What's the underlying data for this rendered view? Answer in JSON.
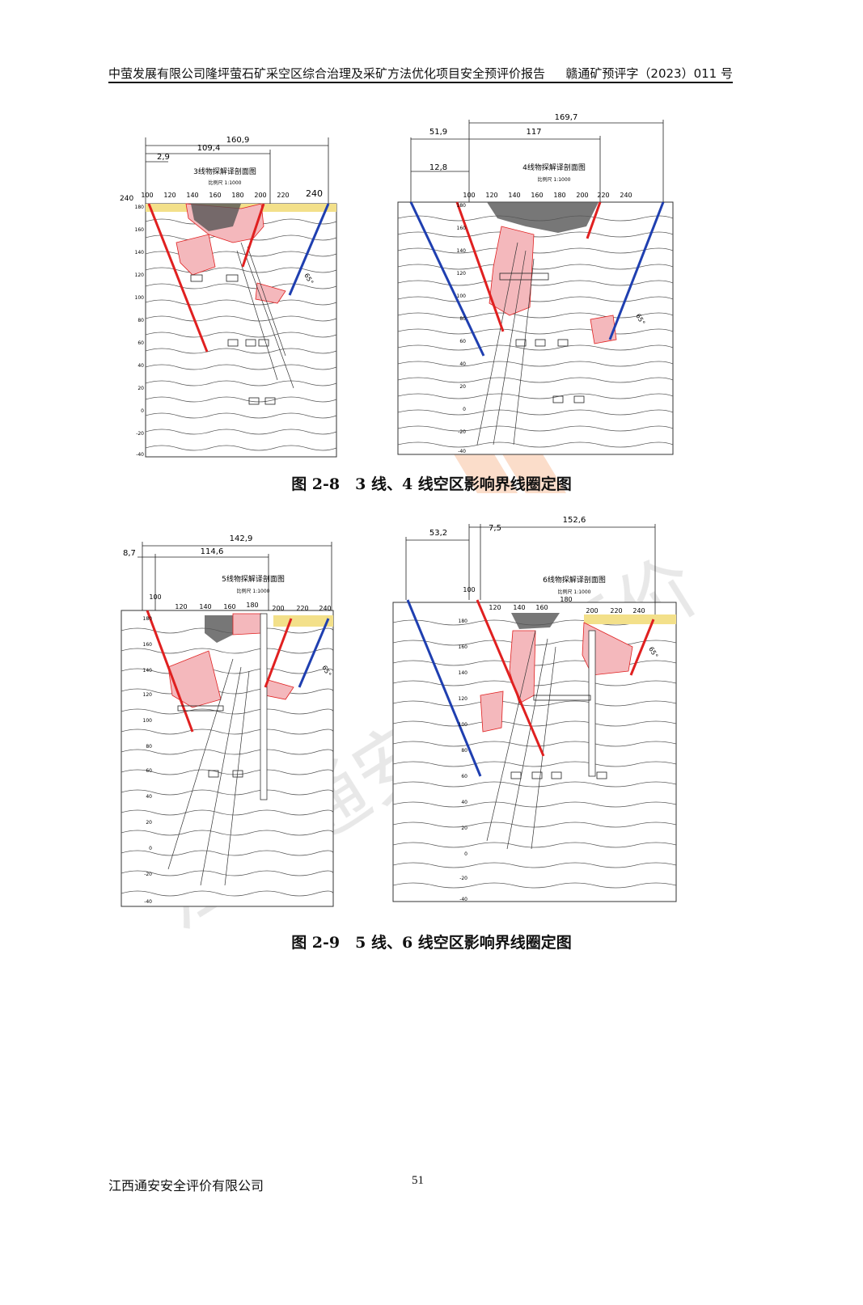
{
  "header": {
    "title": "中萤发展有限公司隆坪萤石矿采空区综合治理及采矿方法优化项目安全预评价报告",
    "doc_number": "赣通矿预评字（2023）011 号"
  },
  "watermark_text": "江西通安安全评价",
  "figures": [
    {
      "section_title": "3线物探解译剖面图",
      "scale": "比例尺 1:1000",
      "dims": [
        "160,9",
        "109,4",
        "2,9"
      ],
      "x_ticks": [
        "100",
        "120",
        "140",
        "160",
        "180",
        "200",
        "220",
        "240"
      ],
      "left_label": "240",
      "right_label": "240",
      "y_ticks": [
        "180",
        "160",
        "140",
        "120",
        "100",
        "80",
        "60",
        "40",
        "20",
        "0",
        "-20",
        "-40"
      ],
      "angle_label": "65°"
    },
    {
      "section_title": "4线物探解译剖面图",
      "scale": "比例尺 1:1000",
      "dims": [
        "169,7",
        "51,9",
        "117",
        "12,8"
      ],
      "x_ticks": [
        "100",
        "120",
        "140",
        "160",
        "180",
        "200",
        "220",
        "240"
      ],
      "y_ticks": [
        "180",
        "160",
        "140",
        "120",
        "100",
        "80",
        "60",
        "40",
        "20",
        "0",
        "-20",
        "-40"
      ],
      "angle_label": "65°"
    },
    {
      "section_title": "5线物探解译剖面图",
      "scale": "比例尺 1:1000",
      "dims": [
        "142,9",
        "114,6",
        "8,7"
      ],
      "x_ticks": [
        "100",
        "120",
        "140",
        "160",
        "180",
        "200",
        "220",
        "240"
      ],
      "y_ticks": [
        "180",
        "160",
        "140",
        "120",
        "100",
        "80",
        "60",
        "40",
        "20",
        "0",
        "-20",
        "-40"
      ],
      "angle_label": "65°"
    },
    {
      "section_title": "6线物探解译剖面图",
      "scale": "比例尺 1:1000",
      "dims": [
        "152,6",
        "53,2",
        "7,5"
      ],
      "x_ticks": [
        "100",
        "120",
        "140",
        "160",
        "180",
        "200",
        "220",
        "240"
      ],
      "y_ticks": [
        "180",
        "160",
        "140",
        "120",
        "100",
        "80",
        "60",
        "40",
        "20",
        "0",
        "-20",
        "-40"
      ],
      "angle_label": "65°"
    }
  ],
  "captions": {
    "fig_2_8": "图 2-8　3 线、4 线空区影响界线圈定图",
    "fig_2_9": "图 2-9　5 线、6 线空区影响界线圈定图"
  },
  "footer": {
    "company": "江西通安安全评价有限公司",
    "page_number": "51"
  },
  "colors": {
    "boundary_red": "#e02020",
    "boundary_blue": "#1f3fb0",
    "void_fill": "#f4b8bc",
    "surface_yellow": "#f3e08a",
    "watermark": "#f3c3a8"
  }
}
